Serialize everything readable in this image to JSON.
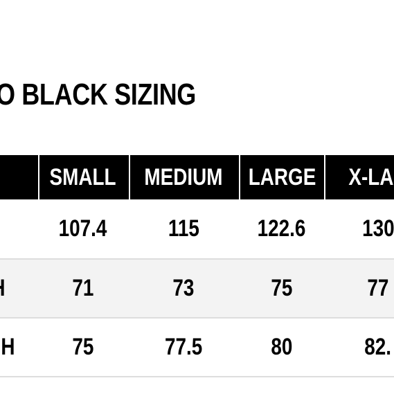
{
  "title": "O BLACK SIZING",
  "table": {
    "header": [
      "SMALL",
      "MEDIUM",
      "LARGE",
      "X-LAR"
    ],
    "rows": [
      {
        "cells": [
          "107.4",
          "115",
          "122.6",
          "130"
        ]
      },
      {
        "label": "H",
        "cells": [
          "71",
          "73",
          "75",
          "77"
        ]
      },
      {
        "label": "H",
        "cells": [
          "75",
          "77.5",
          "80",
          "82."
        ]
      }
    ]
  }
}
